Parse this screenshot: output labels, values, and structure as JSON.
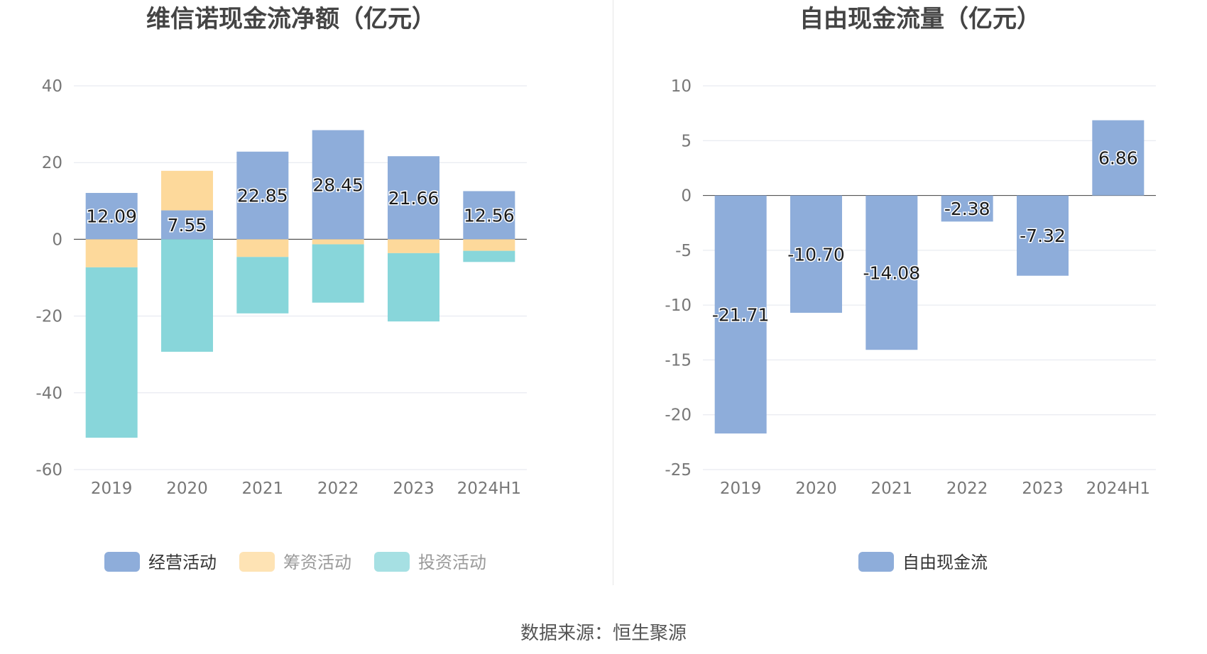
{
  "source_label": "数据来源：恒生聚源",
  "colors": {
    "operating": "#8eadda",
    "financing": "#fdd99b",
    "investing": "#88d6da",
    "fcf": "#8eadda",
    "grid": "#e3e6ee",
    "axis_text": "#777777",
    "title": "#444444"
  },
  "chart_data": [
    {
      "type": "bar",
      "stacked": true,
      "title": "维信诺现金流净额（亿元）",
      "categories": [
        "2019",
        "2020",
        "2021",
        "2022",
        "2023",
        "2024H1"
      ],
      "ylim": [
        -60,
        40
      ],
      "yticks": [
        40,
        20,
        0,
        -20,
        -40,
        -60
      ],
      "grid": true,
      "legend_position": "bottom",
      "series": [
        {
          "name": "经营活动",
          "color": "#8eadda",
          "values": [
            12.09,
            7.55,
            22.85,
            28.45,
            21.66,
            12.56
          ]
        },
        {
          "name": "筹资活动",
          "color": "#fdd99b",
          "values": [
            -7.3,
            10.3,
            -4.6,
            -1.3,
            -3.6,
            -3.0
          ]
        },
        {
          "name": "投资活动",
          "color": "#88d6da",
          "values": [
            -44.4,
            -29.3,
            -14.7,
            -15.2,
            -17.8,
            -2.9
          ]
        }
      ],
      "data_labels": [
        "12.09",
        "7.55",
        "22.85",
        "28.45",
        "21.66",
        "12.56"
      ]
    },
    {
      "type": "bar",
      "title": "自由现金流量（亿元）",
      "categories": [
        "2019",
        "2020",
        "2021",
        "2022",
        "2023",
        "2024H1"
      ],
      "ylim": [
        -25,
        10
      ],
      "yticks": [
        10,
        5,
        0,
        -5,
        -10,
        -15,
        -20,
        -25
      ],
      "grid": true,
      "legend_position": "bottom",
      "series": [
        {
          "name": "自由现金流",
          "color": "#8eadda",
          "values": [
            -21.71,
            -10.7,
            -14.08,
            -2.38,
            -7.32,
            6.86
          ]
        }
      ],
      "data_labels": [
        "-21.71",
        "-10.70",
        "-14.08",
        "-2.38",
        "-7.32",
        "6.86"
      ]
    }
  ]
}
